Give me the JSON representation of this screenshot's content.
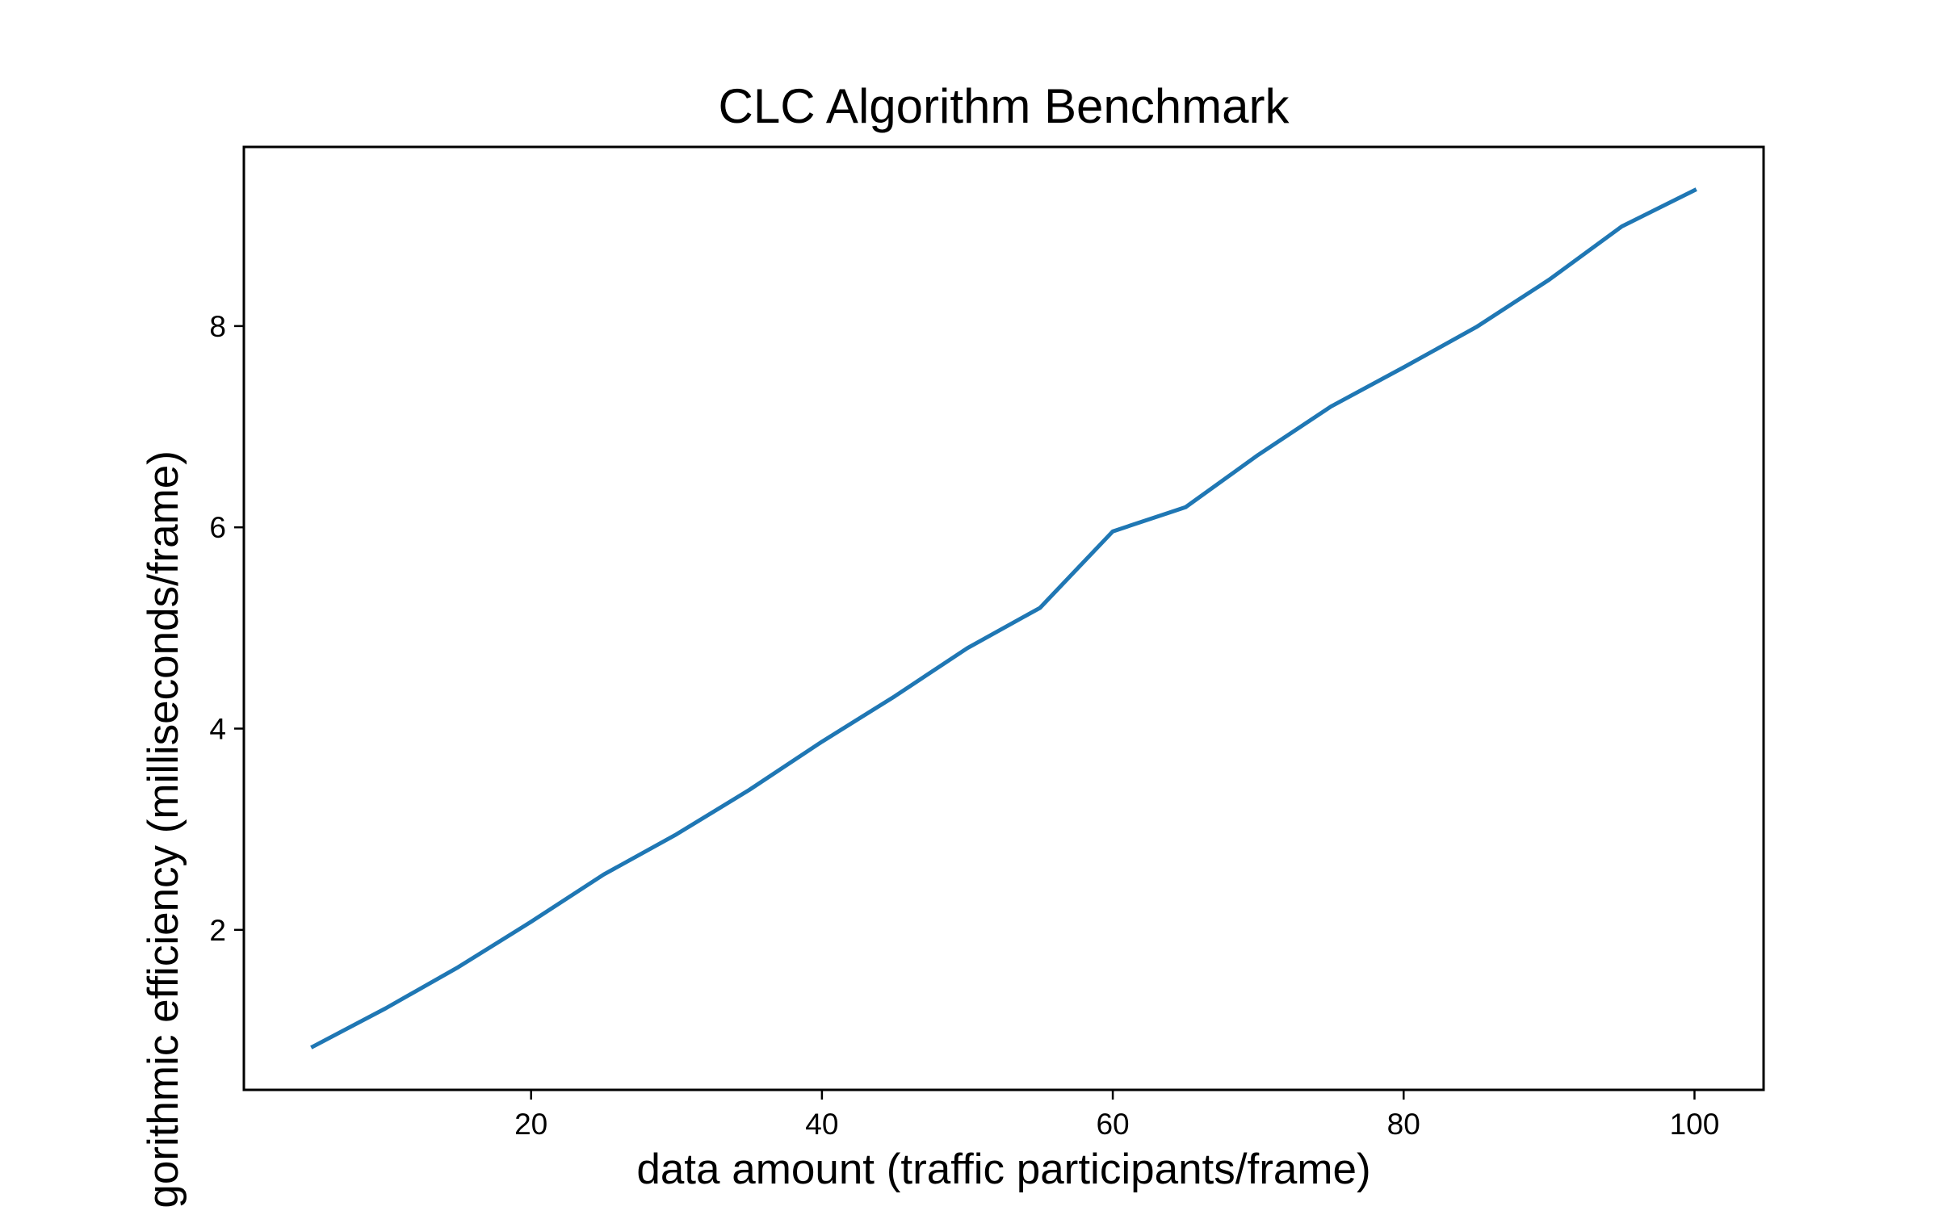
{
  "chart_data": {
    "type": "line",
    "title": "CLC Algorithm Benchmark",
    "xlabel": "data amount (traffic participants/frame)",
    "ylabel": "algorithmic efficiency (milliseconds/frame)",
    "xlim": [
      0.25,
      104.75
    ],
    "ylim": [
      0.41,
      9.78
    ],
    "xticks": [
      20,
      40,
      60,
      80,
      100
    ],
    "yticks": [
      2,
      4,
      6,
      8
    ],
    "grid": false,
    "legend": "none",
    "series": [
      {
        "color": "#1f77b4",
        "x": [
          5,
          10,
          15,
          20,
          25,
          30,
          35,
          40,
          45,
          50,
          55,
          60,
          65,
          70,
          75,
          80,
          85,
          90,
          95,
          100
        ],
        "y": [
          0.84,
          1.22,
          1.63,
          2.08,
          2.55,
          2.95,
          3.39,
          3.87,
          4.32,
          4.8,
          5.2,
          5.96,
          6.2,
          6.72,
          7.2,
          7.59,
          7.99,
          8.46,
          8.99,
          9.35
        ]
      }
    ]
  }
}
